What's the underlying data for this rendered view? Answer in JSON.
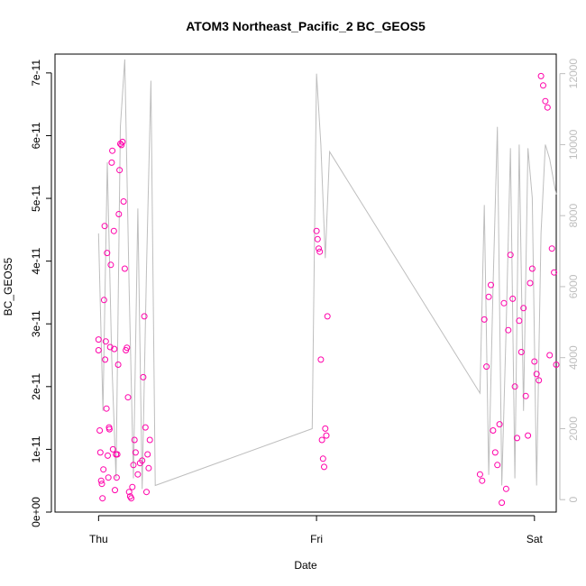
{
  "chart_data": {
    "type": "scatter",
    "title": "ATOM3 Northeast_Pacific_2 BC_GEOS5",
    "xlabel": "Date",
    "ylabel": "BC_GEOS5",
    "x_ticks": [
      "Thu",
      "Fri",
      "Sat"
    ],
    "y_ticks_left": [
      "0e+00",
      "1e-11",
      "2e-11",
      "3e-11",
      "4e-11",
      "5e-11",
      "6e-11",
      "7e-11"
    ],
    "y_ticks_right": [
      "0",
      "2000",
      "4000",
      "6000",
      "8000",
      "10000",
      "12000"
    ],
    "xlim": [
      -0.2,
      2.1
    ],
    "ylim": [
      0,
      7.3e-11
    ],
    "y2lim": [
      -350,
      12550
    ],
    "colors": {
      "points": "#ff00aa",
      "altitude_line": "#bebebe",
      "axis": "#000000",
      "right_axis": "#bebebe"
    },
    "series": [
      {
        "type": "scatter",
        "x": [
          0.0,
          0.0,
          0.005,
          0.008,
          0.012,
          0.015,
          0.018,
          0.022,
          0.025,
          0.028,
          0.03,
          0.033,
          0.036,
          0.039,
          0.042,
          0.045,
          0.048,
          0.05,
          0.053,
          0.056,
          0.06,
          0.063,
          0.066,
          0.07,
          0.072,
          0.075,
          0.08,
          0.083,
          0.086,
          0.09,
          0.093,
          0.096,
          0.1,
          0.105,
          0.11,
          0.115,
          0.12,
          0.125,
          0.13,
          0.135,
          0.14,
          0.145,
          0.15,
          0.155,
          0.16,
          0.165,
          0.17,
          0.18,
          0.19,
          0.2,
          0.205,
          0.21,
          0.215,
          0.22,
          0.225,
          0.23,
          0.235,
          1.0,
          1.005,
          1.01,
          1.015,
          1.02,
          1.025,
          1.03,
          1.035,
          1.04,
          1.045,
          1.05,
          1.75,
          1.76,
          1.77,
          1.78,
          1.79,
          1.8,
          1.81,
          1.82,
          1.83,
          1.84,
          1.85,
          1.86,
          1.87,
          1.88,
          1.89,
          1.9,
          1.91,
          1.92,
          1.93,
          1.94,
          1.95,
          1.96,
          1.97,
          1.98,
          1.99,
          2.0,
          2.01,
          2.02,
          2.03,
          2.04,
          2.05,
          2.06,
          2.07,
          2.08,
          2.09,
          2.1
        ],
        "y": [
          2.58e-11,
          2.75e-11,
          1.3e-11,
          9.5e-12,
          5e-12,
          4.5e-12,
          2.2e-12,
          6.8e-12,
          3.38e-11,
          4.56e-11,
          2.43e-11,
          2.72e-11,
          1.65e-11,
          4.13e-11,
          9e-12,
          5.5e-12,
          1.35e-11,
          1.32e-11,
          2.63e-11,
          3.94e-11,
          5.57e-11,
          5.76e-11,
          1e-11,
          4.48e-11,
          2.6e-11,
          3.5e-12,
          9.2e-12,
          5.5e-12,
          9.2e-12,
          2.35e-11,
          4.75e-11,
          5.45e-11,
          5.87e-11,
          5.85e-11,
          5.9e-11,
          4.95e-11,
          3.88e-11,
          2.58e-11,
          2.62e-11,
          1.83e-11,
          3.2e-12,
          2.5e-12,
          2.2e-12,
          4e-12,
          7.5e-12,
          1.15e-11,
          9.5e-12,
          6e-12,
          7.8e-12,
          8.2e-12,
          2.15e-11,
          3.12e-11,
          1.35e-11,
          3.2e-12,
          9.2e-12,
          7e-12,
          1.15e-11,
          4.48e-11,
          4.35e-11,
          4.2e-11,
          4.15e-11,
          2.43e-11,
          1.15e-11,
          8.5e-12,
          7.2e-12,
          1.33e-11,
          1.22e-11,
          3.12e-11,
          6e-12,
          5e-12,
          3.07e-11,
          2.32e-11,
          3.43e-11,
          3.62e-11,
          1.3e-11,
          9.5e-12,
          7.5e-12,
          1.4e-11,
          1.5e-12,
          3.33e-11,
          3.7e-12,
          2.9e-11,
          4.1e-11,
          3.4e-11,
          2e-11,
          1.18e-11,
          3.05e-11,
          2.55e-11,
          3.25e-11,
          1.85e-11,
          1.22e-11,
          3.65e-11,
          3.88e-11,
          2.4e-11,
          2.2e-11,
          2.1e-11,
          6.95e-11,
          6.8e-11,
          6.55e-11,
          6.45e-11,
          2.5e-11,
          4.2e-11,
          3.82e-11,
          2.35e-11
        ],
        "note": ""
      }
    ],
    "altitude_line": {
      "x": [
        0.0,
        0.02,
        0.04,
        0.06,
        0.08,
        0.1,
        0.12,
        0.14,
        0.16,
        0.18,
        0.2,
        0.22,
        0.24,
        0.26,
        0.98,
        1.0,
        1.02,
        1.04,
        1.06,
        1.75,
        1.77,
        1.79,
        1.81,
        1.83,
        1.85,
        1.87,
        1.89,
        1.91,
        1.93,
        1.95,
        1.97,
        1.99,
        2.01,
        2.03,
        2.05,
        2.07,
        2.09,
        2.1
      ],
      "y": [
        7500,
        2500,
        9500,
        4000,
        600,
        10500,
        12400,
        6000,
        600,
        8200,
        300,
        6500,
        11800,
        400,
        2000,
        12000,
        10000,
        6800,
        9800,
        3000,
        8300,
        700,
        6000,
        10500,
        400,
        4800,
        9900,
        600,
        10000,
        2500,
        9900,
        8500,
        400,
        7500,
        10000,
        9600,
        8900,
        8600
      ]
    }
  }
}
